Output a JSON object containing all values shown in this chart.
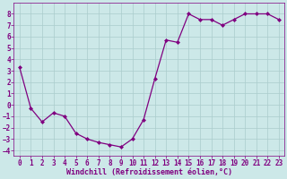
{
  "x": [
    0,
    1,
    2,
    3,
    4,
    5,
    6,
    7,
    8,
    9,
    10,
    11,
    12,
    13,
    14,
    15,
    16,
    17,
    18,
    19,
    20,
    21,
    22,
    23
  ],
  "y": [
    3.3,
    -0.3,
    -1.5,
    -0.7,
    -1.0,
    -2.5,
    -3.0,
    -3.3,
    -3.5,
    -3.7,
    -3.0,
    -1.3,
    2.3,
    5.7,
    5.5,
    8.0,
    7.5,
    7.5,
    7.0,
    7.5,
    8.0,
    8.0,
    8.0,
    7.5
  ],
  "line_color": "#800080",
  "marker": "D",
  "markersize": 2.0,
  "linewidth": 0.9,
  "background_color": "#cce8e8",
  "grid_color": "#aacccc",
  "xlabel": "Windchill (Refroidissement éolien,°C)",
  "xlabel_color": "#800080",
  "tick_color": "#800080",
  "ylim": [
    -4.5,
    9.0
  ],
  "xlim": [
    -0.5,
    23.5
  ],
  "xticks": [
    0,
    1,
    2,
    3,
    4,
    5,
    6,
    7,
    8,
    9,
    10,
    11,
    12,
    13,
    14,
    15,
    16,
    17,
    18,
    19,
    20,
    21,
    22,
    23
  ],
  "yticks": [
    -4,
    -3,
    -2,
    -1,
    0,
    1,
    2,
    3,
    4,
    5,
    6,
    7,
    8
  ],
  "font_family": "monospace",
  "tick_fontsize": 5.5,
  "xlabel_fontsize": 6.0
}
